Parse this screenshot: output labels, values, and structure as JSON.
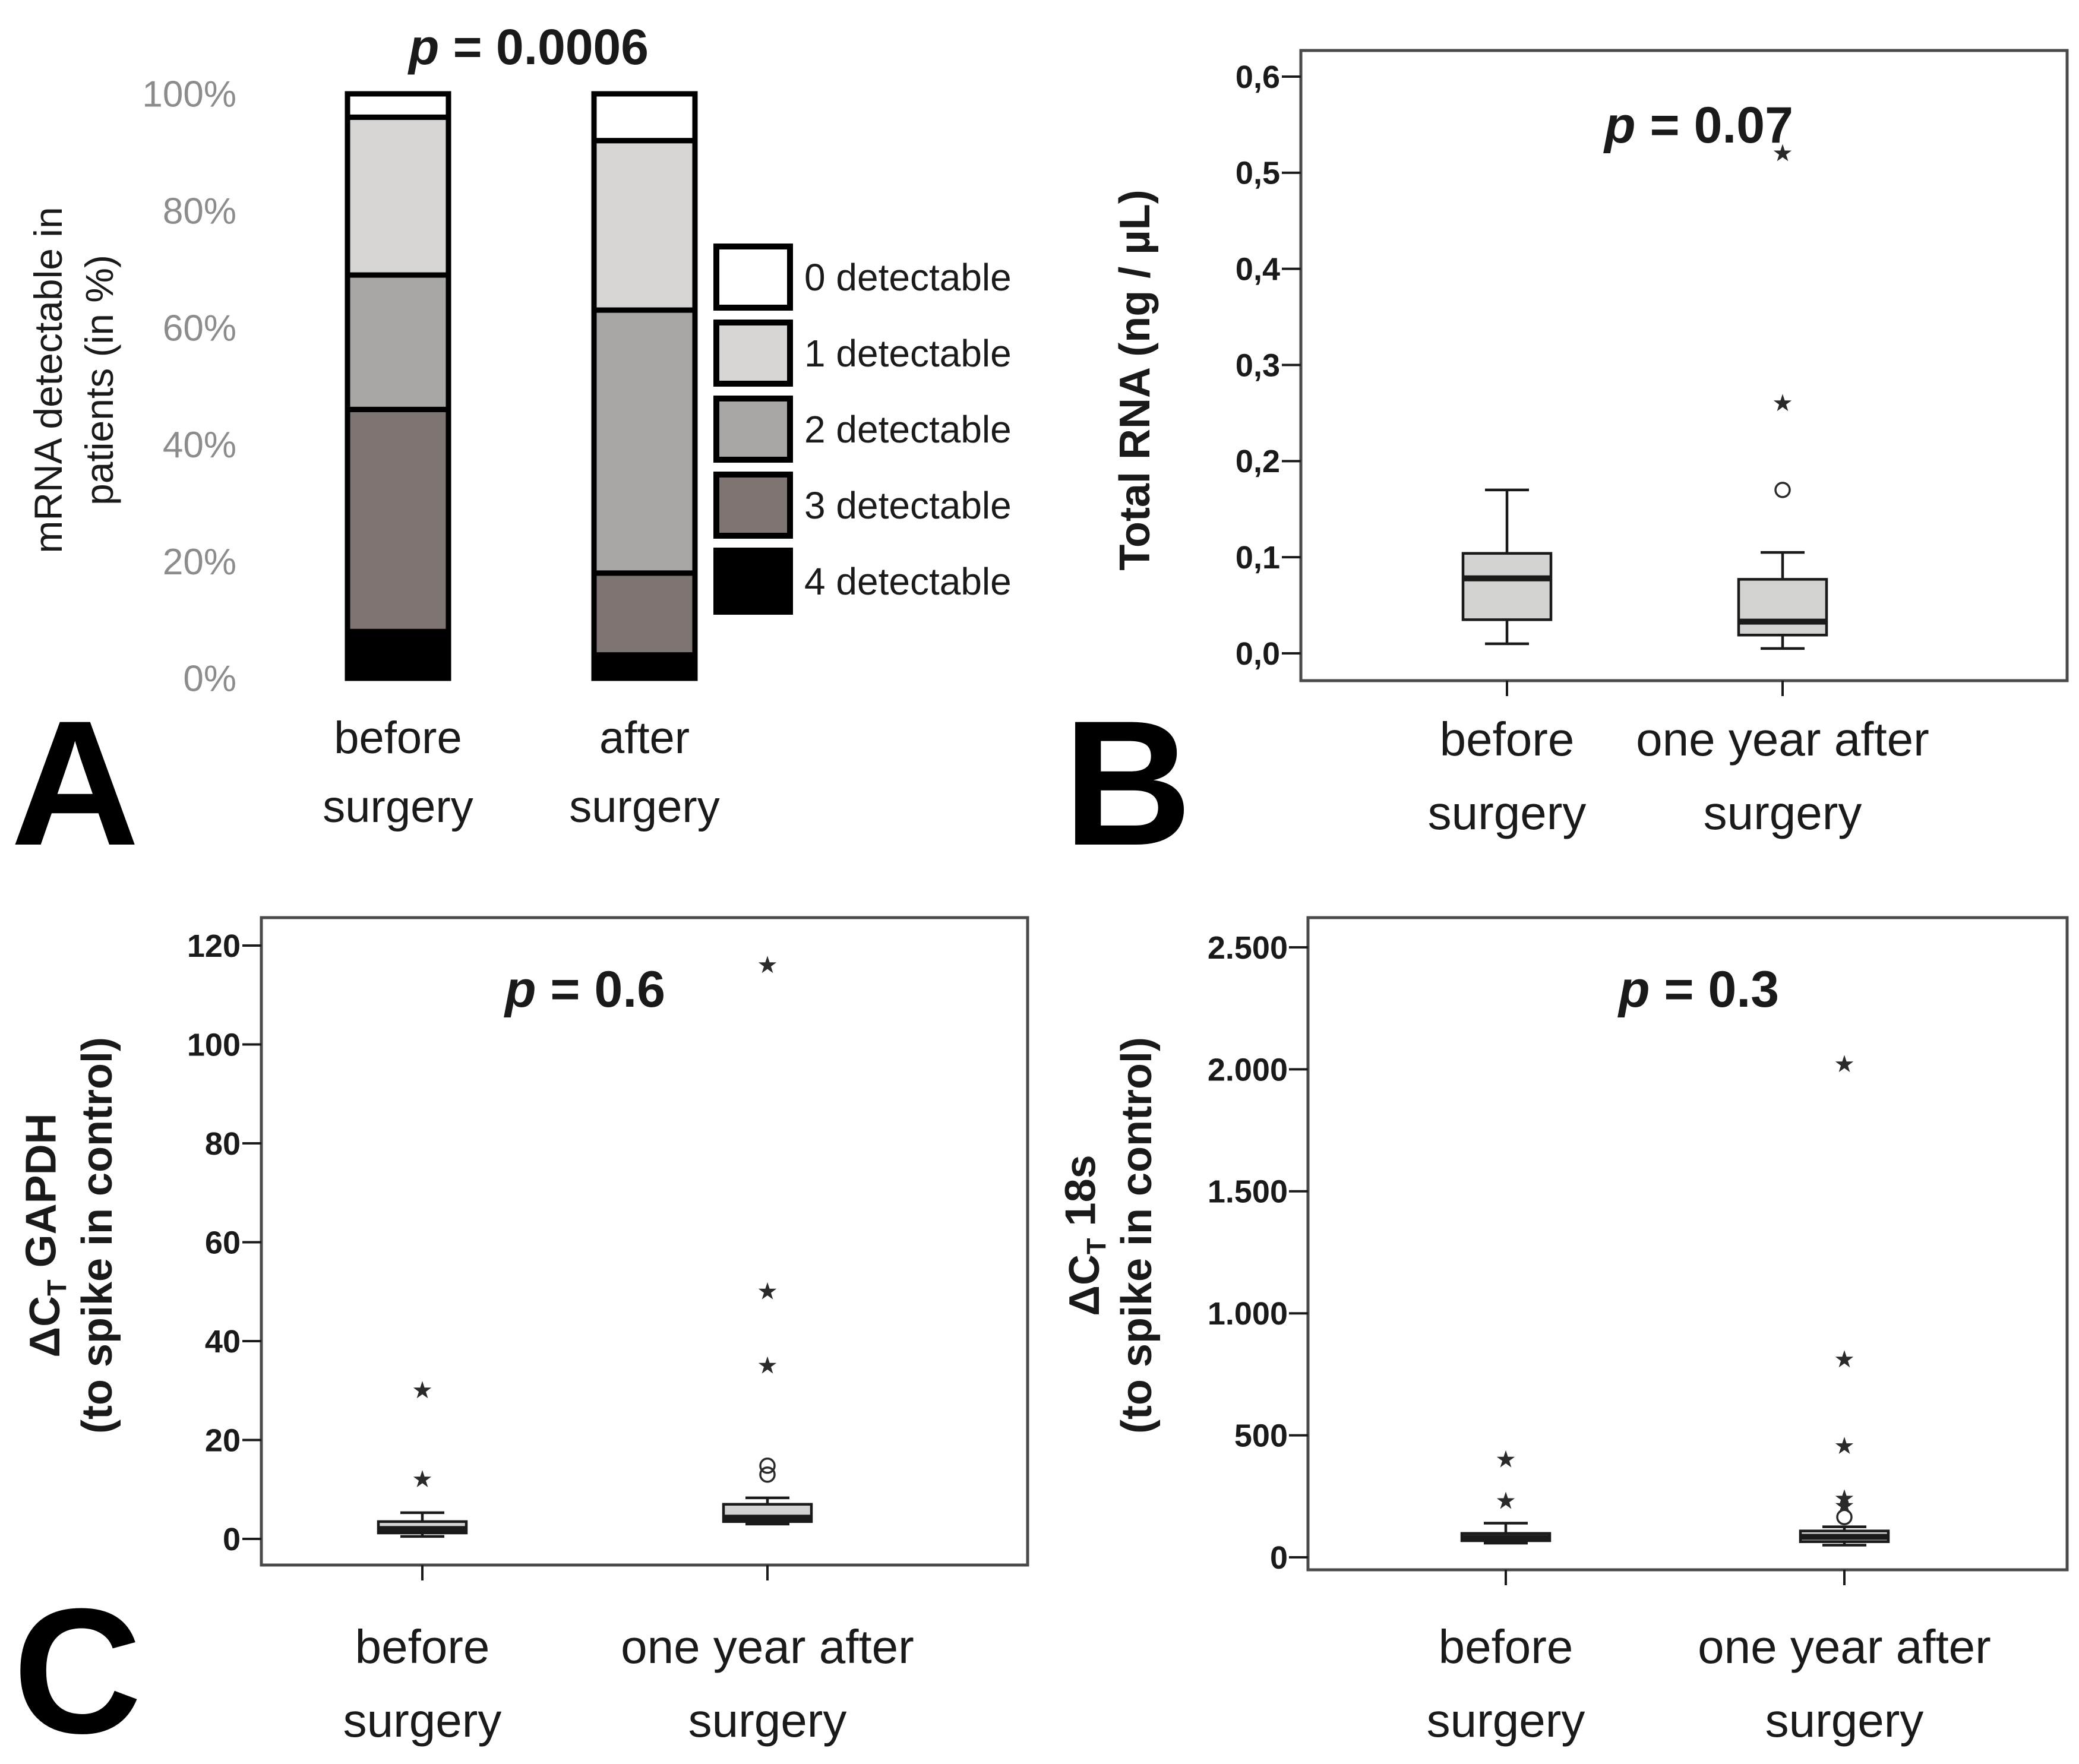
{
  "figure_background": "#ffffff",
  "chart_data": [
    {
      "id": "panelA",
      "letter": "A",
      "type": "bar",
      "stacked": true,
      "title": "p = 0.0006",
      "ylabel_lines": [
        "mRNA detectable in",
        "patients (in %)"
      ],
      "ylim": [
        0,
        100
      ],
      "yticks": [
        {
          "label": "0%",
          "v": 0
        },
        {
          "label": "20%",
          "v": 20
        },
        {
          "label": "40%",
          "v": 40
        },
        {
          "label": "60%",
          "v": 60
        },
        {
          "label": "80%",
          "v": 80
        },
        {
          "label": "100%",
          "v": 100
        }
      ],
      "categories": [
        [
          "before",
          "surgery"
        ],
        [
          "after",
          "surgery"
        ]
      ],
      "series": [
        {
          "name": "4 detectable",
          "color": "#000000",
          "values": [
            8,
            4
          ]
        },
        {
          "name": "3 detectable",
          "color": "#7e7472",
          "values": [
            38,
            14
          ]
        },
        {
          "name": "2 detectable",
          "color": "#a8a7a4",
          "values": [
            23,
            45
          ]
        },
        {
          "name": "1 detectable",
          "color": "#d7d6d4",
          "values": [
            27,
            29
          ]
        },
        {
          "name": "0 detectable",
          "color": "#ffffff",
          "values": [
            4,
            8
          ]
        }
      ],
      "legend": [
        {
          "label": "0 detectable",
          "color": "#ffffff"
        },
        {
          "label": "1 detectable",
          "color": "#d7d6d4"
        },
        {
          "label": "2 detectable",
          "color": "#a8a7a4"
        },
        {
          "label": "3 detectable",
          "color": "#7e7472"
        },
        {
          "label": "4 detectable",
          "color": "#000000"
        }
      ],
      "legend_position": "right",
      "grid": false
    },
    {
      "id": "panelB",
      "letter": "B",
      "type": "box",
      "title": "p = 0.07",
      "ylabel_lines": [
        [
          {
            "t": "Total RNA (ng / µL)"
          }
        ]
      ],
      "ylim": [
        0,
        0.63
      ],
      "yticks": [
        {
          "label": "0,0",
          "v": 0.0
        },
        {
          "label": "0,1",
          "v": 0.1
        },
        {
          "label": "0,2",
          "v": 0.2
        },
        {
          "label": "0,3",
          "v": 0.3
        },
        {
          "label": "0,4",
          "v": 0.4
        },
        {
          "label": "0,5",
          "v": 0.5
        },
        {
          "label": "0,6",
          "v": 0.6
        }
      ],
      "categories": [
        [
          "before",
          "surgery"
        ],
        [
          "one year after",
          "surgery"
        ]
      ],
      "boxes": [
        {
          "category": "before surgery",
          "low": 0.01,
          "q1": 0.035,
          "median": 0.078,
          "q3": 0.104,
          "high": 0.17,
          "outliers": []
        },
        {
          "category": "one year after surgery",
          "low": 0.005,
          "q1": 0.019,
          "median": 0.033,
          "q3": 0.077,
          "high": 0.105,
          "outliers": [
            {
              "v": 0.17,
              "type": "circle"
            },
            {
              "v": 0.26,
              "type": "star"
            },
            {
              "v": 0.52,
              "type": "star"
            }
          ]
        }
      ],
      "grid": false
    },
    {
      "id": "panelC",
      "letter": "C",
      "type": "box",
      "title": "p = 0.6",
      "ylabel_lines": [
        [
          {
            "t": "ΔC"
          },
          {
            "t": "T",
            "sub": true
          },
          {
            "t": " GAPDH"
          }
        ],
        [
          {
            "t": "(to spike in control)"
          }
        ]
      ],
      "ylim": [
        0,
        126
      ],
      "yticks": [
        {
          "label": "0",
          "v": 0
        },
        {
          "label": "20",
          "v": 20
        },
        {
          "label": "40",
          "v": 40
        },
        {
          "label": "60",
          "v": 60
        },
        {
          "label": "80",
          "v": 80
        },
        {
          "label": "100",
          "v": 100
        },
        {
          "label": "120",
          "v": 120
        }
      ],
      "categories": [
        [
          "before",
          "surgery"
        ],
        [
          "one year after",
          "surgery"
        ]
      ],
      "boxes": [
        {
          "category": "before surgery",
          "low": 0.5,
          "q1": 1.2,
          "median": 2.0,
          "q3": 3.5,
          "high": 5.3,
          "outliers": [
            {
              "v": 12,
              "type": "star"
            },
            {
              "v": 30,
              "type": "star"
            }
          ]
        },
        {
          "category": "one year after surgery",
          "low": 3.0,
          "q1": 3.5,
          "median": 4.3,
          "q3": 7.0,
          "high": 8.3,
          "outliers": [
            {
              "v": 13,
              "type": "circle"
            },
            {
              "v": 14.8,
              "type": "circle"
            },
            {
              "v": 35,
              "type": "star"
            },
            {
              "v": 50,
              "type": "star"
            },
            {
              "v": 116,
              "type": "star"
            }
          ]
        }
      ],
      "grid": false
    },
    {
      "id": "panelD",
      "letter": "",
      "type": "box",
      "title": "p = 0.3",
      "ylabel_lines": [
        [
          {
            "t": "ΔC"
          },
          {
            "t": "T",
            "sub": true
          },
          {
            "t": " 18s"
          }
        ],
        [
          {
            "t": "(to spike in control)"
          }
        ]
      ],
      "ylim": [
        0,
        2600
      ],
      "yticks": [
        {
          "label": "0",
          "v": 0
        },
        {
          "label": "500",
          "v": 500
        },
        {
          "label": "1.000",
          "v": 1000
        },
        {
          "label": "1.500",
          "v": 1500
        },
        {
          "label": "2.000",
          "v": 2000
        },
        {
          "label": "2.500",
          "v": 2500
        }
      ],
      "categories": [
        [
          "before",
          "surgery"
        ],
        [
          "one year after",
          "surgery"
        ]
      ],
      "boxes": [
        {
          "category": "before surgery",
          "low": 58,
          "q1": 68,
          "median": 80,
          "q3": 98,
          "high": 140,
          "outliers": [
            {
              "v": 230,
              "type": "star"
            },
            {
              "v": 400,
              "type": "star"
            }
          ]
        },
        {
          "category": "one year after surgery",
          "low": 50,
          "q1": 64,
          "median": 84,
          "q3": 108,
          "high": 125,
          "outliers": [
            {
              "v": 165,
              "type": "circle"
            },
            {
              "v": 210,
              "type": "star"
            },
            {
              "v": 240,
              "type": "star"
            },
            {
              "v": 455,
              "type": "star"
            },
            {
              "v": 810,
              "type": "star"
            },
            {
              "v": 2020,
              "type": "star"
            }
          ]
        }
      ],
      "grid": false
    }
  ]
}
